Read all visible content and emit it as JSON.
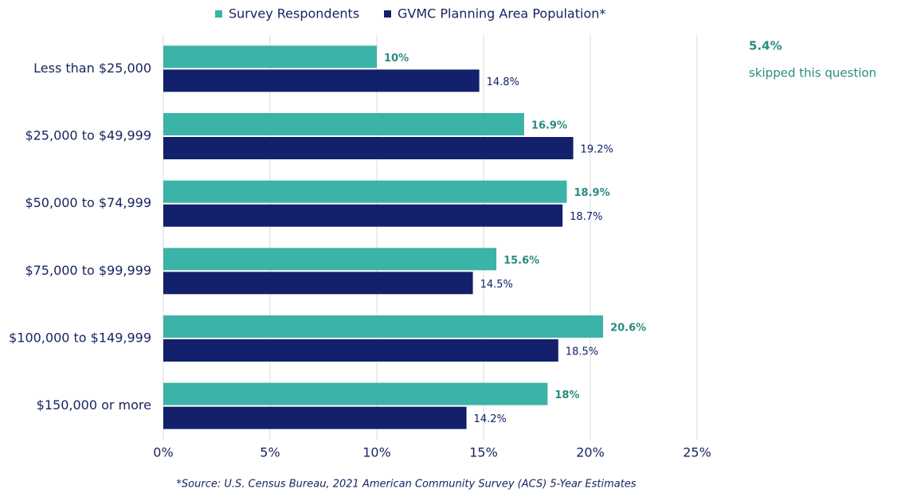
{
  "chart_data": {
    "type": "bar",
    "orientation": "horizontal",
    "categories": [
      "Less than $25,000",
      "$25,000 to $49,999",
      "$50,000 to $74,999",
      "$75,000 to $99,999",
      "$100,000 to $149,999",
      "$150,000 or more"
    ],
    "series": [
      {
        "name": "Survey Respondents",
        "color": "#3bb3a6",
        "label_color": "#2a8c7e",
        "values": [
          10,
          16.9,
          18.9,
          15.6,
          20.6,
          18
        ],
        "value_labels": [
          "10%",
          "16.9%",
          "18.9%",
          "15.6%",
          "20.6%",
          "18%"
        ]
      },
      {
        "name": "GVMC Planning Area Population*",
        "color": "#13206b",
        "label_color": "#13206b",
        "values": [
          14.8,
          19.2,
          18.7,
          14.5,
          18.5,
          14.2
        ],
        "value_labels": [
          "14.8%",
          "19.2%",
          "18.7%",
          "14.5%",
          "18.5%",
          "14.2%"
        ]
      }
    ],
    "xlim": [
      0,
      25
    ],
    "xticks": [
      {
        "value": 0,
        "label": "0%"
      },
      {
        "value": 5,
        "label": "5%"
      },
      {
        "value": 10,
        "label": "10%"
      },
      {
        "value": 15,
        "label": "15%"
      },
      {
        "value": 20,
        "label": "20%"
      },
      {
        "value": 25,
        "label": "25%"
      }
    ],
    "grid": true,
    "legend": "top",
    "annotations": [
      "5.4%",
      "skipped this question"
    ],
    "source": "*Source: U.S. Census Bureau, 2021 American Community Survey (ACS) 5-Year Estimates"
  }
}
